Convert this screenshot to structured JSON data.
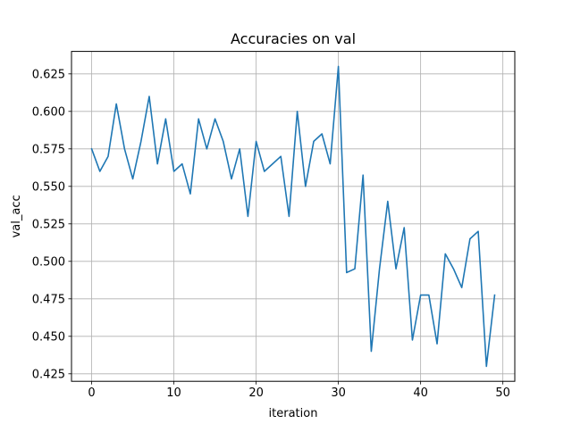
{
  "chart_data": {
    "type": "line",
    "title": "Accuracies on val",
    "xlabel": "iteration",
    "ylabel": "val_acc",
    "xlim": [
      -2.45,
      51.45
    ],
    "ylim": [
      0.42,
      0.64
    ],
    "xticks": [
      0,
      10,
      20,
      30,
      40,
      50
    ],
    "yticks": [
      0.425,
      0.45,
      0.475,
      0.5,
      0.525,
      0.55,
      0.575,
      0.6,
      0.625
    ],
    "xtick_labels": [
      "0",
      "10",
      "20",
      "30",
      "40",
      "50"
    ],
    "ytick_labels": [
      "0.425",
      "0.450",
      "0.475",
      "0.500",
      "0.525",
      "0.550",
      "0.575",
      "0.600",
      "0.625"
    ],
    "grid": true,
    "legend": false,
    "series": [
      {
        "color": "#1f77b4",
        "x": [
          0,
          1,
          2,
          3,
          4,
          5,
          6,
          7,
          8,
          9,
          10,
          11,
          12,
          13,
          14,
          15,
          16,
          17,
          18,
          19,
          20,
          21,
          22,
          23,
          24,
          25,
          26,
          27,
          28,
          29,
          30,
          31,
          32,
          33,
          34,
          35,
          36,
          37,
          38,
          39,
          40,
          41,
          42,
          43,
          44,
          45,
          46,
          47,
          48,
          49
        ],
        "y": [
          0.575,
          0.56,
          0.57,
          0.605,
          0.575,
          0.555,
          0.58,
          0.61,
          0.565,
          0.595,
          0.56,
          0.565,
          0.545,
          0.595,
          0.575,
          0.595,
          0.58,
          0.555,
          0.575,
          0.53,
          0.58,
          0.56,
          0.565,
          0.57,
          0.53,
          0.6,
          0.55,
          0.58,
          0.585,
          0.565,
          0.63,
          0.4925,
          0.495,
          0.5575,
          0.44,
          0.495,
          0.54,
          0.495,
          0.5225,
          0.4475,
          0.4775,
          0.4775,
          0.445,
          0.505,
          0.495,
          0.4825,
          0.515,
          0.52,
          0.43,
          0.4775
        ]
      }
    ]
  }
}
